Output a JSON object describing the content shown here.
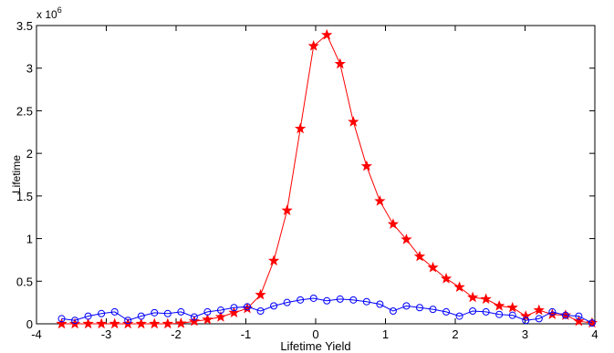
{
  "chart_data": {
    "type": "line",
    "xlabel": "Lifetime Yield",
    "ylabel": "Lifetime",
    "y_multiplier": "x 10",
    "y_multiplier_exponent": "6",
    "x": [
      -3.64,
      -3.45,
      -3.26,
      -3.07,
      -2.88,
      -2.69,
      -2.5,
      -2.31,
      -2.12,
      -1.93,
      -1.74,
      -1.55,
      -1.36,
      -1.17,
      -0.98,
      -0.79,
      -0.6,
      -0.41,
      -0.22,
      -0.03,
      0.16,
      0.35,
      0.54,
      0.73,
      0.92,
      1.11,
      1.3,
      1.49,
      1.68,
      1.87,
      2.06,
      2.25,
      2.44,
      2.63,
      2.82,
      3.01,
      3.2,
      3.39,
      3.58,
      3.77,
      3.96
    ],
    "series": [
      {
        "name": "red",
        "color": "#ff0000",
        "marker": "star",
        "values": [
          0,
          0,
          0,
          0,
          0,
          0,
          0,
          0,
          0,
          0.005,
          0.03,
          0.05,
          0.08,
          0.13,
          0.18,
          0.34,
          0.74,
          1.33,
          2.29,
          3.26,
          3.39,
          3.05,
          2.37,
          1.85,
          1.44,
          1.17,
          0.99,
          0.79,
          0.66,
          0.53,
          0.43,
          0.31,
          0.29,
          0.21,
          0.19,
          0.09,
          0.16,
          0.11,
          0.1,
          0.03,
          0.01
        ]
      },
      {
        "name": "blue",
        "color": "#0000ff",
        "marker": "circle",
        "values": [
          0.06,
          0.04,
          0.09,
          0.12,
          0.14,
          0.04,
          0.09,
          0.13,
          0.12,
          0.14,
          0.08,
          0.14,
          0.16,
          0.19,
          0.2,
          0.15,
          0.21,
          0.25,
          0.28,
          0.3,
          0.27,
          0.29,
          0.28,
          0.26,
          0.23,
          0.15,
          0.21,
          0.19,
          0.17,
          0.14,
          0.09,
          0.15,
          0.14,
          0.11,
          0.1,
          0.04,
          0.06,
          0.14,
          0.1,
          0.09,
          0.01
        ]
      }
    ],
    "xlim": [
      -4,
      4
    ],
    "xticks": [
      -4,
      -3,
      -2,
      -1,
      0,
      1,
      2,
      3,
      4
    ],
    "ylim": [
      0,
      3.5
    ],
    "yticks": [
      0,
      0.5,
      1,
      1.5,
      2,
      2.5,
      3,
      3.5
    ],
    "grid": false
  }
}
